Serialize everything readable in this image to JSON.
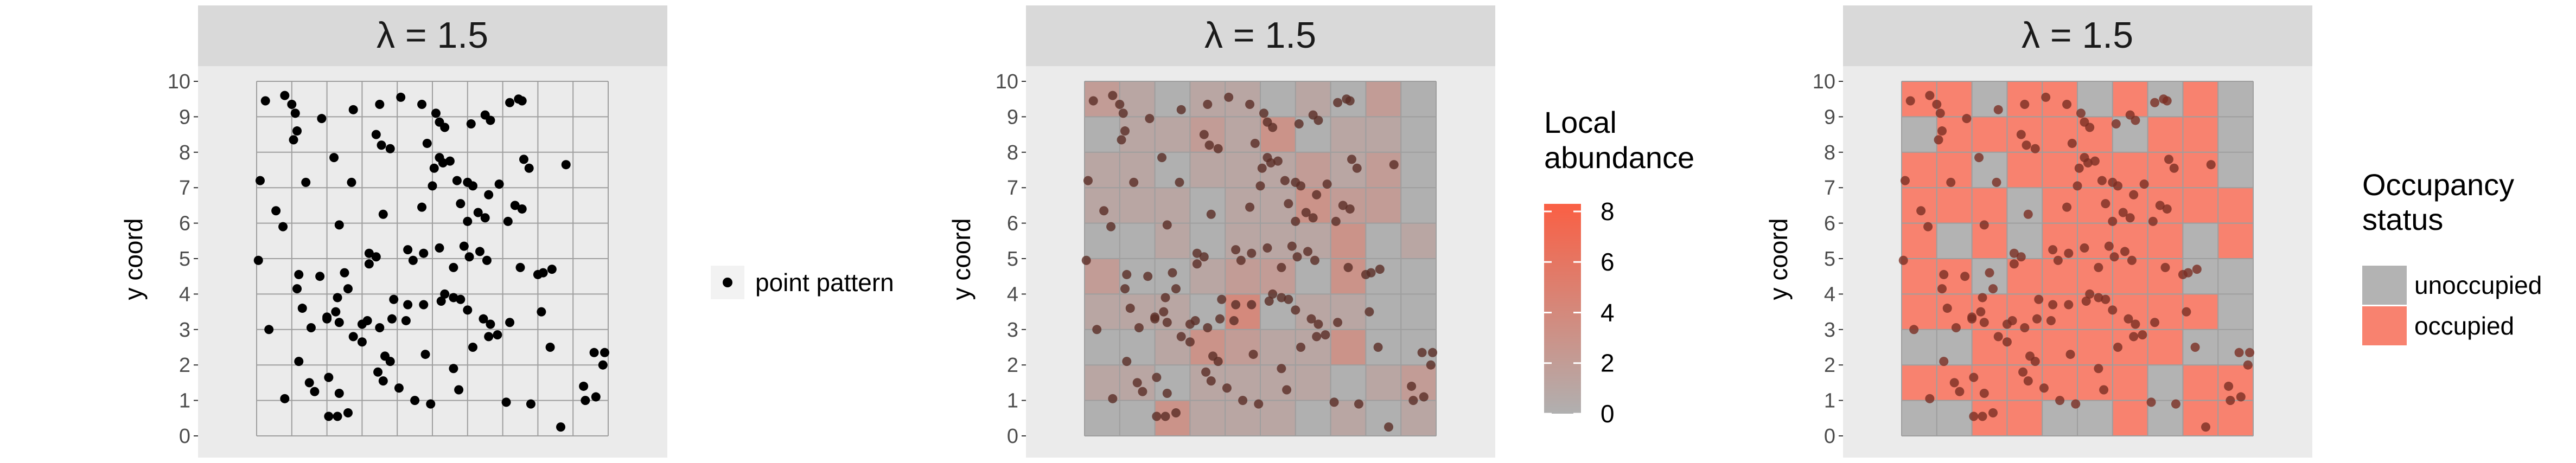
{
  "chart_data": [
    {
      "type": "scatter",
      "panel_title": "λ = 1.5",
      "ylabel": "y coord",
      "xlabel": "",
      "xlim": [
        0,
        10
      ],
      "ylim": [
        0,
        10
      ],
      "y_ticks": [
        0,
        1,
        2,
        3,
        4,
        5,
        6,
        7,
        8,
        9,
        10
      ],
      "grid": true,
      "legend": {
        "position": "right",
        "items": [
          {
            "label": "point pattern"
          }
        ]
      },
      "points": [
        [
          0.25,
          9.45
        ],
        [
          0.8,
          9.6
        ],
        [
          1.0,
          9.35
        ],
        [
          1.1,
          9.1
        ],
        [
          1.15,
          8.6
        ],
        [
          1.05,
          8.35
        ],
        [
          1.85,
          8.95
        ],
        [
          2.75,
          9.2
        ],
        [
          3.5,
          9.35
        ],
        [
          4.1,
          9.55
        ],
        [
          4.7,
          9.35
        ],
        [
          5.1,
          9.1
        ],
        [
          5.2,
          8.85
        ],
        [
          5.35,
          8.7
        ],
        [
          6.1,
          8.8
        ],
        [
          6.5,
          9.05
        ],
        [
          6.65,
          8.9
        ],
        [
          7.2,
          9.4
        ],
        [
          7.45,
          9.5
        ],
        [
          7.55,
          9.45
        ],
        [
          2.2,
          7.85
        ],
        [
          3.4,
          8.5
        ],
        [
          3.55,
          8.2
        ],
        [
          3.8,
          8.1
        ],
        [
          4.85,
          8.25
        ],
        [
          5.2,
          7.85
        ],
        [
          5.05,
          7.55
        ],
        [
          5.3,
          7.7
        ],
        [
          5.5,
          7.75
        ],
        [
          7.6,
          7.8
        ],
        [
          7.75,
          7.55
        ],
        [
          8.8,
          7.65
        ],
        [
          0.1,
          7.2
        ],
        [
          1.4,
          7.15
        ],
        [
          2.7,
          7.15
        ],
        [
          5.0,
          7.05
        ],
        [
          5.7,
          7.2
        ],
        [
          6.0,
          7.15
        ],
        [
          6.15,
          7.05
        ],
        [
          6.9,
          7.1
        ],
        [
          0.55,
          6.35
        ],
        [
          0.75,
          5.9
        ],
        [
          2.35,
          5.95
        ],
        [
          3.6,
          6.25
        ],
        [
          4.7,
          6.45
        ],
        [
          5.8,
          6.55
        ],
        [
          6.0,
          6.05
        ],
        [
          6.3,
          6.3
        ],
        [
          6.5,
          6.15
        ],
        [
          6.6,
          6.8
        ],
        [
          7.15,
          6.05
        ],
        [
          7.35,
          6.5
        ],
        [
          7.55,
          6.4
        ],
        [
          0.05,
          4.95
        ],
        [
          1.2,
          4.55
        ],
        [
          1.15,
          4.15
        ],
        [
          1.8,
          4.5
        ],
        [
          2.5,
          4.6
        ],
        [
          3.2,
          4.85
        ],
        [
          3.4,
          5.05
        ],
        [
          3.2,
          5.15
        ],
        [
          4.3,
          5.25
        ],
        [
          4.45,
          4.95
        ],
        [
          4.75,
          5.15
        ],
        [
          5.2,
          5.3
        ],
        [
          5.6,
          4.75
        ],
        [
          5.9,
          5.35
        ],
        [
          6.05,
          5.05
        ],
        [
          6.35,
          5.2
        ],
        [
          6.55,
          4.95
        ],
        [
          7.5,
          4.75
        ],
        [
          8.0,
          4.55
        ],
        [
          8.15,
          4.6
        ],
        [
          8.4,
          4.7
        ],
        [
          0.35,
          3.0
        ],
        [
          1.3,
          3.6
        ],
        [
          1.55,
          3.05
        ],
        [
          2.0,
          3.35
        ],
        [
          2.3,
          3.9
        ],
        [
          2.6,
          4.15
        ],
        [
          2.25,
          3.5
        ],
        [
          2.35,
          3.2
        ],
        [
          2.75,
          2.8
        ],
        [
          3.0,
          3.15
        ],
        [
          3.15,
          3.25
        ],
        [
          3.5,
          3.05
        ],
        [
          3.9,
          3.85
        ],
        [
          3.85,
          3.3
        ],
        [
          4.25,
          3.25
        ],
        [
          4.75,
          3.7
        ],
        [
          5.25,
          3.8
        ],
        [
          5.35,
          4.0
        ],
        [
          5.6,
          3.9
        ],
        [
          5.8,
          3.85
        ],
        [
          6.0,
          3.55
        ],
        [
          6.45,
          3.3
        ],
        [
          6.65,
          3.15
        ],
        [
          6.85,
          2.85
        ],
        [
          7.2,
          3.2
        ],
        [
          8.1,
          3.5
        ],
        [
          8.35,
          2.5
        ],
        [
          1.2,
          2.1
        ],
        [
          1.5,
          1.5
        ],
        [
          1.65,
          1.25
        ],
        [
          2.05,
          1.65
        ],
        [
          2.35,
          1.2
        ],
        [
          3.0,
          2.65
        ],
        [
          3.45,
          1.8
        ],
        [
          3.6,
          1.55
        ],
        [
          4.05,
          1.35
        ],
        [
          4.5,
          1.0
        ],
        [
          4.95,
          0.9
        ],
        [
          4.8,
          2.3
        ],
        [
          5.6,
          1.9
        ],
        [
          5.75,
          1.3
        ],
        [
          6.15,
          2.5
        ],
        [
          6.6,
          2.8
        ],
        [
          7.1,
          0.95
        ],
        [
          7.8,
          0.9
        ],
        [
          9.35,
          1.0
        ],
        [
          9.6,
          2.35
        ],
        [
          9.85,
          2.0
        ],
        [
          9.9,
          2.35
        ],
        [
          0.8,
          1.05
        ],
        [
          2.05,
          0.55
        ],
        [
          2.3,
          0.55
        ],
        [
          2.6,
          0.65
        ],
        [
          3.65,
          2.25
        ],
        [
          3.8,
          2.1
        ],
        [
          8.65,
          0.25
        ],
        [
          2.0,
          3.3
        ],
        [
          9.3,
          1.4
        ],
        [
          9.65,
          1.1
        ],
        [
          4.3,
          3.7
        ]
      ]
    },
    {
      "type": "heatmap",
      "panel_title": "λ = 1.5",
      "ylabel": "y coord",
      "xlabel": "",
      "xlim": [
        0,
        10
      ],
      "ylim": [
        0,
        10
      ],
      "y_ticks": [
        0,
        1,
        2,
        3,
        4,
        5,
        6,
        7,
        8,
        9,
        10
      ],
      "grid": true,
      "color_scale": {
        "low": "#b0b0b0",
        "high": "#fa5f44",
        "min": 0,
        "max": 8.3
      },
      "legend": {
        "position": "right",
        "title_lines": [
          "Local",
          "abundance"
        ],
        "ticks": [
          0,
          2,
          4,
          6,
          8
        ]
      },
      "cells_row_order": "rows listed from top (y=9-10) to bottom (y=0-1), columns x=0-1 ... 9-10",
      "cells": [
        [
          2,
          1,
          0,
          1,
          1,
          0,
          1,
          0,
          2,
          0
        ],
        [
          0,
          1,
          1,
          2,
          1,
          3,
          0,
          1,
          1,
          0
        ],
        [
          1,
          1,
          0,
          1,
          1,
          1,
          2,
          1,
          2,
          0
        ],
        [
          1,
          1,
          1,
          0,
          1,
          1,
          3,
          2,
          2,
          0
        ],
        [
          0,
          0,
          1,
          0,
          1,
          1,
          1,
          3,
          0,
          1
        ],
        [
          2,
          0,
          0,
          1,
          2,
          2,
          0,
          3,
          0,
          0
        ],
        [
          1,
          1,
          1,
          0,
          4,
          0,
          1,
          1,
          0,
          0
        ],
        [
          0,
          0,
          1,
          3,
          2,
          1,
          1,
          3,
          0,
          0
        ],
        [
          1,
          1,
          0,
          1,
          1,
          1,
          1,
          0,
          1,
          2
        ],
        [
          0,
          0,
          3,
          1,
          1,
          1,
          0,
          1,
          0,
          1
        ]
      ]
    },
    {
      "type": "heatmap",
      "panel_title": "λ = 1.5",
      "ylabel": "y coord",
      "xlabel": "",
      "xlim": [
        0,
        10
      ],
      "ylim": [
        0,
        10
      ],
      "y_ticks": [
        0,
        1,
        2,
        3,
        4,
        5,
        6,
        7,
        8,
        9,
        10
      ],
      "grid": true,
      "legend": {
        "position": "right",
        "title_lines": [
          "Occupancy",
          "status"
        ],
        "items": [
          {
            "label": "unoccupied",
            "color": "#b3b3b3"
          },
          {
            "label": "occupied",
            "color": "#f8826f"
          }
        ]
      },
      "cells_row_order": "rows listed from top (y=9-10) to bottom (y=0-1), columns x=0-1 ... 9-10; 1 = occupied, 0 = unoccupied",
      "cells": [
        [
          1,
          1,
          0,
          1,
          1,
          0,
          1,
          0,
          1,
          0
        ],
        [
          0,
          1,
          1,
          1,
          1,
          1,
          0,
          1,
          1,
          0
        ],
        [
          1,
          1,
          0,
          1,
          1,
          1,
          1,
          1,
          1,
          0
        ],
        [
          1,
          1,
          1,
          0,
          1,
          1,
          1,
          1,
          1,
          1
        ],
        [
          1,
          0,
          1,
          0,
          1,
          1,
          1,
          1,
          0,
          1
        ],
        [
          1,
          1,
          0,
          1,
          1,
          1,
          1,
          1,
          0,
          0
        ],
        [
          1,
          1,
          1,
          1,
          1,
          1,
          1,
          1,
          1,
          0
        ],
        [
          0,
          0,
          1,
          1,
          1,
          1,
          1,
          1,
          0,
          0
        ],
        [
          1,
          1,
          1,
          1,
          1,
          1,
          1,
          0,
          1,
          1
        ],
        [
          0,
          0,
          1,
          1,
          0,
          0,
          1,
          0,
          1,
          1
        ]
      ]
    }
  ]
}
